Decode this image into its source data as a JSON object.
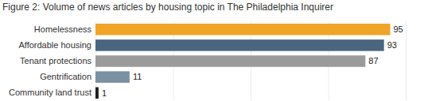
{
  "chart_data": {
    "type": "bar",
    "orientation": "horizontal",
    "title": "Figure 2: Volume of news articles by housing topic in The Philadelphia Inquirer",
    "categories": [
      "Homelessness",
      "Affordable housing",
      "Tenant protections",
      "Gentrification",
      "Community land trust"
    ],
    "values": [
      95,
      93,
      87,
      11,
      1
    ],
    "colors": [
      "#f0a526",
      "#4a6580",
      "#9b9b9b",
      "#7b90a3",
      "#1f1f1f"
    ],
    "xlim": [
      0,
      100
    ],
    "xticks": [
      0,
      25,
      50,
      75,
      100
    ],
    "grid": true,
    "data_labels": true,
    "tick_labels": "y"
  }
}
